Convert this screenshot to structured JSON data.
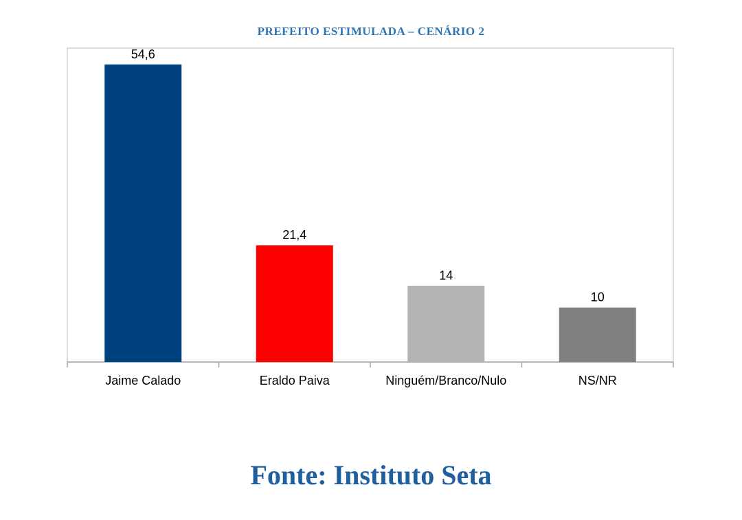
{
  "chart_data": {
    "type": "bar",
    "title": "PREFEITO ESTIMULADA – CENÁRIO 2",
    "categories": [
      "Jaime Calado",
      "Eraldo Paiva",
      "Ninguém/Branco/Nulo",
      "NS/NR"
    ],
    "values": [
      54.6,
      21.4,
      14,
      10
    ],
    "data_labels": [
      "54,6",
      "21,4",
      "14",
      "10"
    ],
    "colors": [
      "#00427f",
      "#ff0000",
      "#b3b3b3",
      "#808080"
    ],
    "xlabel": "",
    "ylabel": "",
    "ylim": [
      0,
      57.6
    ],
    "grid": false,
    "legend": "none"
  },
  "source": {
    "label": "Fonte: Instituto Seta"
  }
}
